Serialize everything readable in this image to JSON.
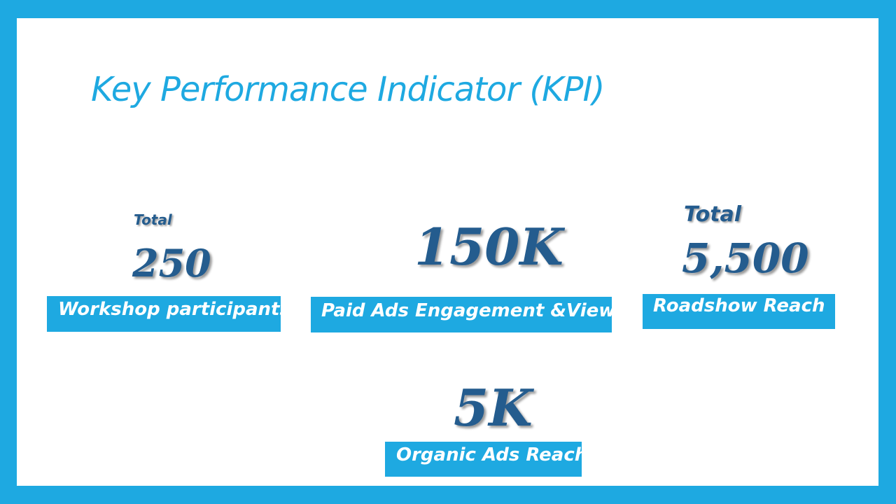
{
  "title": "Key Performance Indicator (KPI)",
  "kpis": [
    {
      "prefix": "Total",
      "value": "250",
      "label": "Workshop participants"
    },
    {
      "prefix": "",
      "value": "150K",
      "label": "Paid Ads Engagement &Views"
    },
    {
      "prefix": "Total",
      "value": "5,500",
      "label": "Roadshow Reach"
    },
    {
      "prefix": "",
      "value": "5K",
      "label": "Organic Ads Reach"
    }
  ],
  "colors": {
    "frame": "#1EA9E1",
    "title": "#1EA9E1",
    "numbers": "#245C8E",
    "label_bg": "#1EA9E1",
    "label_text": "#FFFFFF"
  }
}
